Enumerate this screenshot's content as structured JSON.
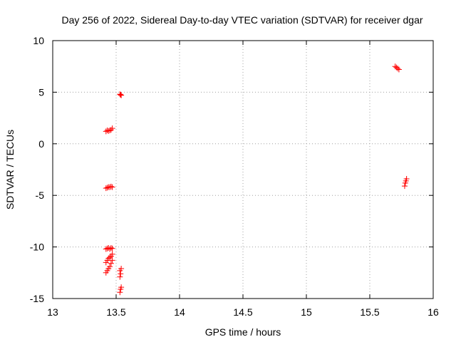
{
  "chart_data": {
    "type": "scatter",
    "title": "Day 256 of 2022, Sidereal Day-to-day VTEC variation (SDTVAR) for receiver dgar",
    "xlabel": "GPS time / hours",
    "ylabel": "SDTVAR / TECUs",
    "xlim": [
      13,
      16
    ],
    "ylim": [
      -15,
      10
    ],
    "xticks": [
      13,
      13.5,
      14,
      14.5,
      15,
      15.5,
      16
    ],
    "xtick_labels": [
      "13",
      "13.5",
      "14",
      "14.5",
      "15",
      "15.5",
      "16"
    ],
    "yticks": [
      -15,
      -10,
      -5,
      0,
      5,
      10
    ],
    "ytick_labels": [
      "-15",
      "-10",
      "-5",
      "0",
      "5",
      "10"
    ],
    "grid": true,
    "marker": "+",
    "series": [
      {
        "name": "dgar",
        "color": "#ff0000",
        "points": [
          {
            "x": 13.53,
            "y": 4.8
          },
          {
            "x": 13.54,
            "y": 4.7
          },
          {
            "x": 13.535,
            "y": 4.75
          },
          {
            "x": 13.42,
            "y": 1.2
          },
          {
            "x": 13.43,
            "y": 1.3
          },
          {
            "x": 13.44,
            "y": 1.25
          },
          {
            "x": 13.45,
            "y": 1.3
          },
          {
            "x": 13.46,
            "y": 1.35
          },
          {
            "x": 13.47,
            "y": 1.5
          },
          {
            "x": 13.42,
            "y": -4.3
          },
          {
            "x": 13.43,
            "y": -4.25
          },
          {
            "x": 13.44,
            "y": -4.2
          },
          {
            "x": 13.45,
            "y": -4.2
          },
          {
            "x": 13.46,
            "y": -4.15
          },
          {
            "x": 13.47,
            "y": -4.2
          },
          {
            "x": 13.42,
            "y": -10.2
          },
          {
            "x": 13.43,
            "y": -10.15
          },
          {
            "x": 13.44,
            "y": -10.1
          },
          {
            "x": 13.45,
            "y": -10.2
          },
          {
            "x": 13.46,
            "y": -10.1
          },
          {
            "x": 13.47,
            "y": -10.15
          },
          {
            "x": 13.42,
            "y": -11.5
          },
          {
            "x": 13.43,
            "y": -11.3
          },
          {
            "x": 13.44,
            "y": -11.1
          },
          {
            "x": 13.45,
            "y": -11.0
          },
          {
            "x": 13.46,
            "y": -10.9
          },
          {
            "x": 13.47,
            "y": -10.7
          },
          {
            "x": 13.42,
            "y": -12.5
          },
          {
            "x": 13.43,
            "y": -12.3
          },
          {
            "x": 13.44,
            "y": -12.1
          },
          {
            "x": 13.45,
            "y": -11.9
          },
          {
            "x": 13.46,
            "y": -11.6
          },
          {
            "x": 13.47,
            "y": -11.3
          },
          {
            "x": 13.53,
            "y": -12.3
          },
          {
            "x": 13.54,
            "y": -12.1
          },
          {
            "x": 13.535,
            "y": -12.6
          },
          {
            "x": 13.53,
            "y": -12.9
          },
          {
            "x": 13.54,
            "y": -13.9
          },
          {
            "x": 13.53,
            "y": -14.4
          },
          {
            "x": 13.535,
            "y": -14.1
          },
          {
            "x": 15.7,
            "y": 7.5
          },
          {
            "x": 15.71,
            "y": 7.4
          },
          {
            "x": 15.72,
            "y": 7.3
          },
          {
            "x": 15.73,
            "y": 7.2
          },
          {
            "x": 15.79,
            "y": -3.4
          },
          {
            "x": 15.785,
            "y": -3.6
          },
          {
            "x": 15.78,
            "y": -3.8
          },
          {
            "x": 15.775,
            "y": -4.1
          }
        ]
      }
    ]
  }
}
